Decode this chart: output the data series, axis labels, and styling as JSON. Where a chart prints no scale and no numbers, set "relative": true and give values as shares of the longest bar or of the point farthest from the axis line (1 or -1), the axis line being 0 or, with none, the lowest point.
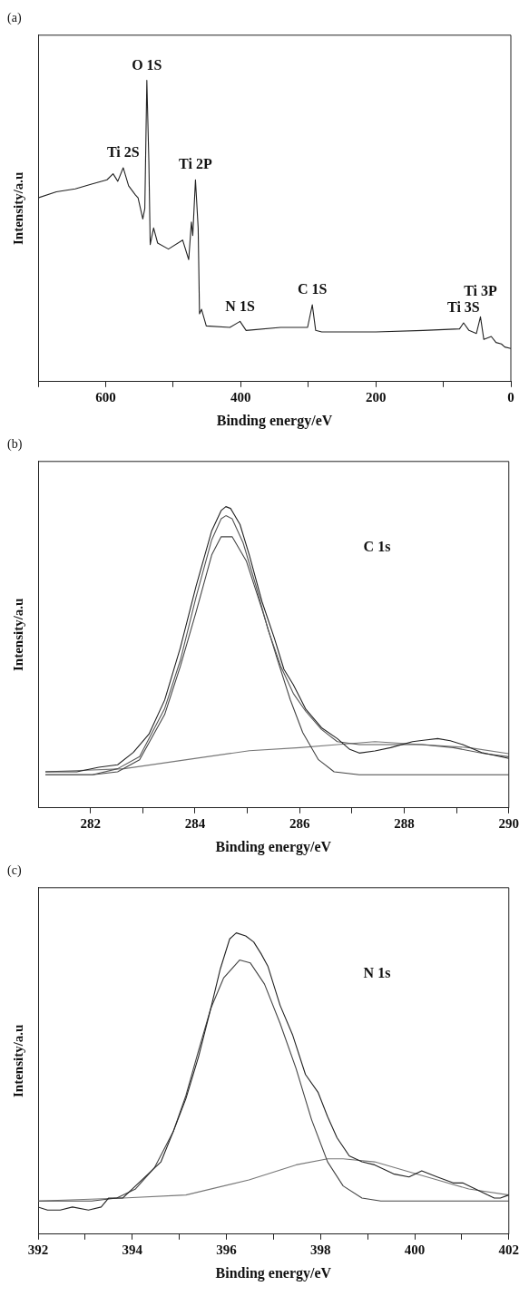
{
  "chart_data": [
    {
      "type": "line",
      "title": "(a)",
      "xlabel": "Binding energy/eV",
      "ylabel": "Intensity/a.u",
      "relative": true,
      "marker": "none",
      "xlim": [
        700,
        0
      ],
      "xticks": [
        {
          "value": 700,
          "label": null
        },
        600,
        {
          "value": 500,
          "label": null
        },
        400,
        {
          "value": 300,
          "label": null
        },
        200,
        {
          "value": 100,
          "label": null
        },
        0
      ],
      "series": [
        {
          "color": "#222222",
          "x": [
            700,
            673,
            645,
            622,
            598,
            589,
            582,
            574,
            566,
            556,
            552,
            545,
            542,
            539,
            536,
            534,
            529,
            523,
            507,
            486,
            477,
            473,
            471,
            467,
            463,
            461,
            458,
            451,
            416,
            401,
            392,
            341,
            301,
            294,
            289,
            280,
            200,
            130,
            76,
            70,
            62,
            51,
            45,
            40,
            29,
            22,
            14,
            9,
            0
          ],
          "values": [
            0.61,
            0.63,
            0.64,
            0.655,
            0.67,
            0.69,
            0.665,
            0.71,
            0.65,
            0.62,
            0.61,
            0.54,
            0.575,
            1.0,
            0.73,
            0.455,
            0.51,
            0.46,
            0.44,
            0.47,
            0.405,
            0.53,
            0.485,
            0.67,
            0.51,
            0.225,
            0.24,
            0.185,
            0.18,
            0.2,
            0.17,
            0.18,
            0.18,
            0.255,
            0.17,
            0.165,
            0.165,
            0.17,
            0.175,
            0.195,
            0.17,
            0.16,
            0.215,
            0.14,
            0.15,
            0.13,
            0.125,
            0.115,
            0.11
          ]
        }
      ],
      "annotations": [
        {
          "text": "Ti 2S",
          "x": 574,
          "y": 0.71
        },
        {
          "text": "O 1S",
          "x": 539,
          "y": 1.0
        },
        {
          "text": "Ti 2P",
          "x": 467,
          "y": 0.67
        },
        {
          "text": "N 1S",
          "x": 401,
          "y": 0.2
        },
        {
          "text": "C 1S",
          "x": 294,
          "y": 0.255
        },
        {
          "text": "Ti 3S",
          "x": 70,
          "y": 0.195
        },
        {
          "text": "Ti 3P",
          "x": 45,
          "y": 0.215
        }
      ]
    },
    {
      "type": "line",
      "title": "(b)",
      "xlabel": "Binding energy/eV",
      "ylabel": "Intensity/a.u",
      "relative": true,
      "marker": "none",
      "xlim": [
        281,
        290
      ],
      "xticks": [
        282,
        {
          "value": 283,
          "label": null
        },
        284,
        {
          "value": 285,
          "label": null
        },
        286,
        {
          "value": 287,
          "label": null
        },
        288,
        {
          "value": 289,
          "label": null
        },
        290
      ],
      "series": [
        {
          "color": "#222222",
          "x": [
            281.14,
            281.74,
            282.16,
            282.52,
            282.82,
            283.12,
            283.42,
            283.72,
            284.02,
            284.32,
            284.5,
            284.59,
            284.68,
            284.86,
            285.04,
            285.28,
            285.52,
            285.7,
            285.88,
            286.12,
            286.42,
            286.72,
            286.96,
            287.14,
            287.44,
            287.74,
            288.16,
            288.4,
            288.64,
            288.88,
            289.12,
            289.48,
            290
          ],
          "values": [
            0.12,
            0.12,
            0.135,
            0.143,
            0.184,
            0.245,
            0.358,
            0.532,
            0.736,
            0.92,
            0.987,
            1.0,
            0.994,
            0.941,
            0.838,
            0.685,
            0.562,
            0.46,
            0.409,
            0.327,
            0.266,
            0.23,
            0.194,
            0.182,
            0.189,
            0.2,
            0.22,
            0.225,
            0.23,
            0.223,
            0.21,
            0.184,
            0.164
          ]
        },
        {
          "color": "#555555",
          "x": [
            281.14,
            282.04,
            282.52,
            282.94,
            283.42,
            283.72,
            284.02,
            284.32,
            284.5,
            284.59,
            284.71,
            284.92,
            285.16,
            285.4,
            285.64,
            285.88,
            286.12,
            286.42,
            286.72,
            287.14,
            287.74,
            288.34,
            288.94,
            289.54,
            290
          ],
          "values": [
            0.11,
            0.11,
            0.13,
            0.17,
            0.33,
            0.49,
            0.7,
            0.89,
            0.96,
            0.97,
            0.96,
            0.88,
            0.74,
            0.59,
            0.47,
            0.38,
            0.32,
            0.26,
            0.22,
            0.21,
            0.21,
            0.21,
            0.2,
            0.18,
            0.17
          ]
        },
        {
          "color": "#444444",
          "x": [
            281.14,
            282.04,
            282.52,
            282.94,
            283.42,
            283.72,
            284.02,
            284.32,
            284.5,
            284.59,
            284.71,
            284.98,
            285.28,
            285.58,
            285.82,
            286.06,
            286.36,
            286.66,
            287.14,
            290
          ],
          "values": [
            0.11,
            0.11,
            0.12,
            0.16,
            0.31,
            0.47,
            0.65,
            0.84,
            0.9,
            0.9,
            0.9,
            0.82,
            0.66,
            0.49,
            0.36,
            0.25,
            0.16,
            0.12,
            0.11,
            0.11
          ]
        },
        {
          "color": "#777777",
          "x": [
            281.14,
            282.64,
            283.84,
            285.04,
            286.0,
            286.72,
            287.44,
            288.34,
            289.24,
            290
          ],
          "values": [
            0.12,
            0.13,
            0.16,
            0.19,
            0.2,
            0.21,
            0.22,
            0.21,
            0.2,
            0.18
          ]
        }
      ],
      "annotations": [
        "C 1s"
      ]
    },
    {
      "type": "line",
      "title": "(c)",
      "xlabel": "Binding energy/eV",
      "ylabel": "Intensity/a.u",
      "relative": true,
      "marker": "none",
      "xlim": [
        392,
        402
      ],
      "xticks": [
        392,
        {
          "value": 393,
          "label": null
        },
        394,
        {
          "value": 395,
          "label": null
        },
        396,
        {
          "value": 397,
          "label": null
        },
        398,
        {
          "value": 399,
          "label": null
        },
        400,
        {
          "value": 401,
          "label": null
        },
        402
      ],
      "series": [
        {
          "color": "#222222",
          "x": [
            392.0,
            392.2,
            392.47,
            392.73,
            393.07,
            393.34,
            393.5,
            393.8,
            394.07,
            394.34,
            394.61,
            394.87,
            395.14,
            395.41,
            395.67,
            395.87,
            396.07,
            396.21,
            396.41,
            396.58,
            396.74,
            396.88,
            397.14,
            397.41,
            397.68,
            397.95,
            398.15,
            398.35,
            398.61,
            398.88,
            399.15,
            399.55,
            399.88,
            400.15,
            400.48,
            400.82,
            401.02,
            401.29,
            401.55,
            401.69,
            401.82,
            402.0
          ],
          "values": [
            0.09,
            0.08,
            0.08,
            0.09,
            0.08,
            0.09,
            0.12,
            0.12,
            0.16,
            0.2,
            0.24,
            0.34,
            0.45,
            0.59,
            0.75,
            0.88,
            0.98,
            1.0,
            0.99,
            0.97,
            0.93,
            0.89,
            0.76,
            0.66,
            0.53,
            0.47,
            0.39,
            0.32,
            0.26,
            0.24,
            0.23,
            0.2,
            0.19,
            0.21,
            0.19,
            0.17,
            0.17,
            0.15,
            0.13,
            0.12,
            0.12,
            0.13
          ]
        },
        {
          "color": "#444444",
          "x": [
            392.0,
            393.14,
            393.67,
            394.07,
            394.47,
            394.87,
            395.14,
            395.41,
            395.67,
            395.94,
            396.28,
            396.51,
            396.81,
            397.14,
            397.48,
            397.81,
            398.15,
            398.48,
            398.88,
            399.28,
            402.0
          ],
          "values": [
            0.11,
            0.11,
            0.12,
            0.15,
            0.22,
            0.34,
            0.46,
            0.61,
            0.75,
            0.85,
            0.91,
            0.9,
            0.83,
            0.7,
            0.55,
            0.38,
            0.24,
            0.16,
            0.12,
            0.11,
            0.11
          ]
        },
        {
          "color": "#777777",
          "x": [
            392.0,
            393.8,
            395.14,
            396.48,
            397.48,
            398.15,
            398.48,
            399.15,
            399.81,
            400.48,
            401.15,
            402.0
          ],
          "values": [
            0.11,
            0.12,
            0.13,
            0.18,
            0.23,
            0.25,
            0.25,
            0.24,
            0.21,
            0.18,
            0.15,
            0.13
          ]
        }
      ],
      "annotations": [
        "N 1s"
      ]
    }
  ]
}
